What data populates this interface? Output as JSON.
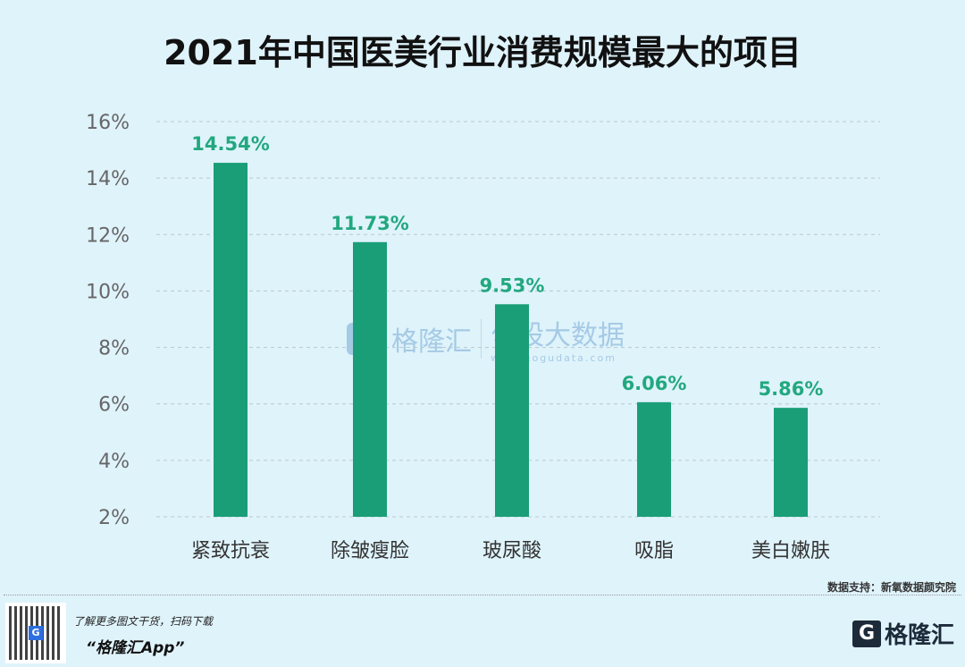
{
  "chart_data": {
    "type": "bar",
    "title": "2021年中国医美行业消费规模最大的项目",
    "categories": [
      "紧致抗衰",
      "除皱瘦脸",
      "玻尿酸",
      "吸脂",
      "美白嫩肤"
    ],
    "values": [
      14.54,
      11.73,
      9.53,
      6.06,
      5.86
    ],
    "data_labels": [
      "14.54%",
      "11.73%",
      "9.53%",
      "6.06%",
      "5.86%"
    ],
    "ylim": [
      2,
      16
    ],
    "yticks": [
      "2%",
      "4%",
      "6%",
      "8%",
      "10%",
      "12%",
      "14%",
      "16%"
    ],
    "ytick_values": [
      2,
      4,
      6,
      8,
      10,
      12,
      14,
      16
    ],
    "grid": true,
    "bar_color": "#1a9e78",
    "label_color": "#22a87f"
  },
  "source": "数据支持：新氧数据颜究院",
  "footer": {
    "promo_line": "了解更多图文干货，扫码下载",
    "app_name": "“格隆汇App”",
    "logo_text": "格隆汇"
  },
  "watermark": {
    "brand1": "格隆汇",
    "brand2": "勾股大数据",
    "url": "www.gogudata.com"
  }
}
